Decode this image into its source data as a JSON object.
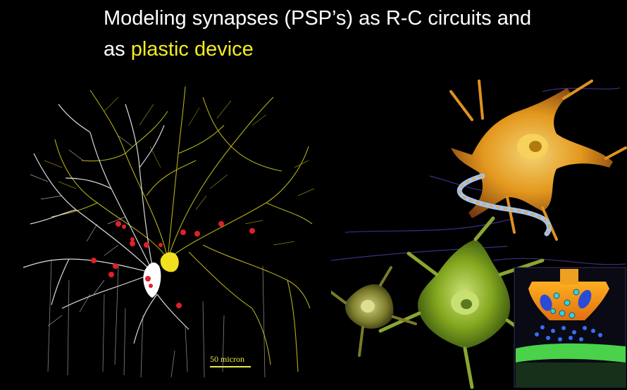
{
  "slide": {
    "title_line1": "Modeling synapses (PSP’s) as R-C circuits and",
    "title_line2_prefix": "as",
    "title_line2_highlight": "plastic device"
  },
  "left_figure": {
    "scale_label": "50 micron"
  },
  "colors": {
    "background": "#000000",
    "title_text": "#ffffff",
    "highlight": "#f2ee1e",
    "synapse_markers": "#e0202a",
    "neuron_white": "#ffffff",
    "neuron_yellow": "#f0e020"
  }
}
